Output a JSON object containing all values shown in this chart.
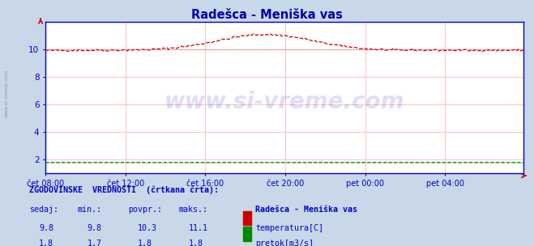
{
  "title": "Radešca - Meniška vas",
  "title_color": "#0000aa",
  "bg_color": "#c8d8e8",
  "plot_bg_color": "#ffffff",
  "grid_color": "#ffaaaa",
  "axis_color": "#0000cc",
  "tick_color": "#0000cc",
  "watermark_text": "www.si-vreme.com",
  "watermark_color": "#0000cc",
  "watermark_alpha": 0.13,
  "ylim": [
    1.0,
    12.0
  ],
  "yticks": [
    2,
    4,
    6,
    8,
    10
  ],
  "xtick_labels": [
    "čet 08:00",
    "čet 12:00",
    "čet 16:00",
    "čet 20:00",
    "pet 00:00",
    "pet 04:00"
  ],
  "temp_color": "#cc0000",
  "flow_color": "#008800",
  "temp_min": 9.8,
  "temp_max": 11.1,
  "temp_avg": 10.3,
  "temp_cur": 9.8,
  "flow_min": 1.7,
  "flow_max": 1.8,
  "flow_avg": 1.8,
  "flow_cur": 1.8,
  "legend_station": "Radešca - Meniška vas",
  "legend_temp": "temperatura[C]",
  "legend_flow": "pretok[m3/s]",
  "footer_line1": "ZGODOVINSKE  VREDNOSTI  (črtkana črta):",
  "footer_headers": [
    "sedaj:",
    "min.:",
    "povpr.:",
    "maks.:"
  ],
  "footer_color": "#0000cc",
  "sidebar_text": "www.si-vreme.com",
  "sidebar_color": "#7090a0"
}
